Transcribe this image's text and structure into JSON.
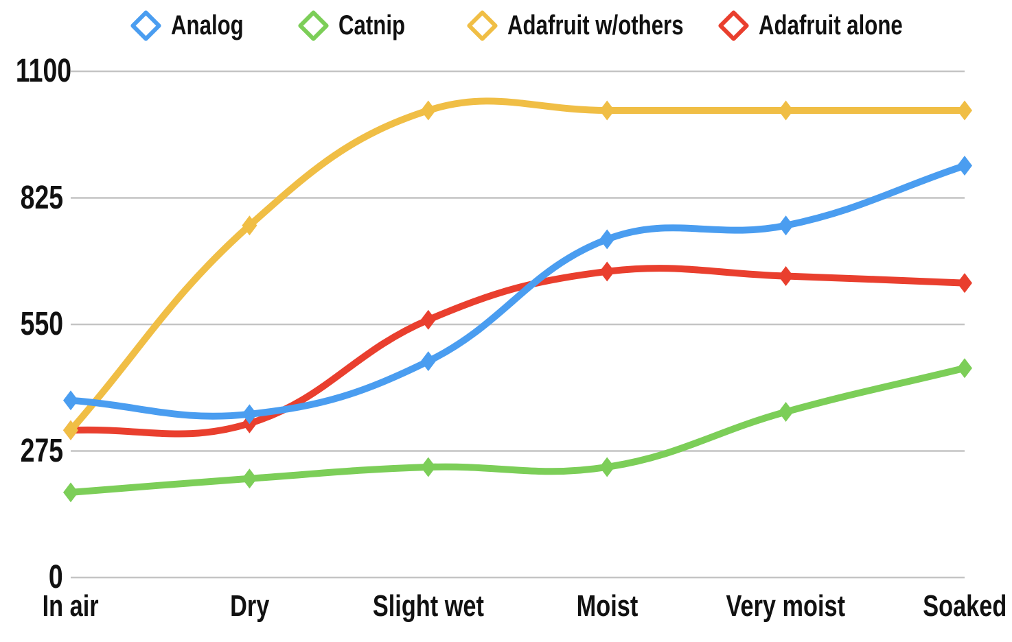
{
  "chart_data": {
    "type": "line",
    "title": "",
    "categories": [
      "In air",
      "Dry",
      "Slight wet",
      "Moist",
      "Very moist",
      "Soaked"
    ],
    "y_tick_labels": [
      "1100",
      "825",
      "550",
      "275",
      "0"
    ],
    "ylim": [
      0,
      1100
    ],
    "grid": true,
    "grid_color": "#c4c4c4",
    "background_color": "#ffffff",
    "text_color": "#111111",
    "legend_position": "top",
    "line_style": "smooth bezier (tension 0.4) with solid diamond point markers, hollow diamond legend icons",
    "series": [
      {
        "name": "Analog",
        "color": "#4A9DF0",
        "values": [
          385,
          355,
          470,
          735,
          765,
          895
        ]
      },
      {
        "name": "Catnip",
        "color": "#7CCE58",
        "values": [
          185,
          215,
          240,
          240,
          360,
          455
        ]
      },
      {
        "name": "Adafruit w/others",
        "color": "#F0BE45",
        "values": [
          320,
          765,
          1015,
          1015,
          1015,
          1015
        ]
      },
      {
        "name": "Adafruit alone",
        "color": "#E93F2E",
        "values": [
          320,
          335,
          560,
          665,
          655,
          640
        ]
      }
    ]
  }
}
